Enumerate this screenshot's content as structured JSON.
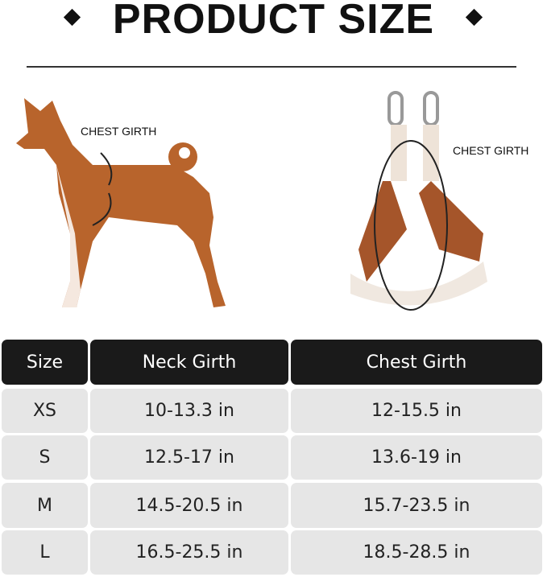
{
  "title": "PRODUCT SIZE",
  "dog_label": "CHEST GIRTH",
  "harness_label": "CHEST GIRTH",
  "colors": {
    "header_bg": "#1a1a1a",
    "cell_bg": "#e6e6e6",
    "harness_brown": "#a5552a"
  },
  "table": {
    "headers": [
      "Size",
      "Neck Girth",
      "Chest Girth"
    ],
    "rows": [
      [
        "XS",
        "10-13.3 in",
        "12-15.5 in"
      ],
      [
        "S",
        "12.5-17 in",
        "13.6-19 in"
      ],
      [
        "M",
        "14.5-20.5 in",
        "15.7-23.5 in"
      ],
      [
        "L",
        "16.5-25.5 in",
        "18.5-28.5 in"
      ]
    ]
  }
}
